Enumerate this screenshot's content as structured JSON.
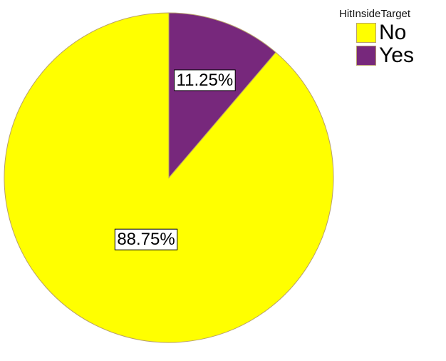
{
  "chart_data": {
    "type": "pie",
    "legend_title": "HitInsideTarget",
    "legend_position": "top-right",
    "slices": [
      {
        "label": "No",
        "value": 88.75,
        "display": "88.75%",
        "color": "#ffff00"
      },
      {
        "label": "Yes",
        "value": 11.25,
        "display": "11.25%",
        "color": "#77287c"
      }
    ],
    "start_angle_deg": 0,
    "direction": "counterclockwise"
  }
}
